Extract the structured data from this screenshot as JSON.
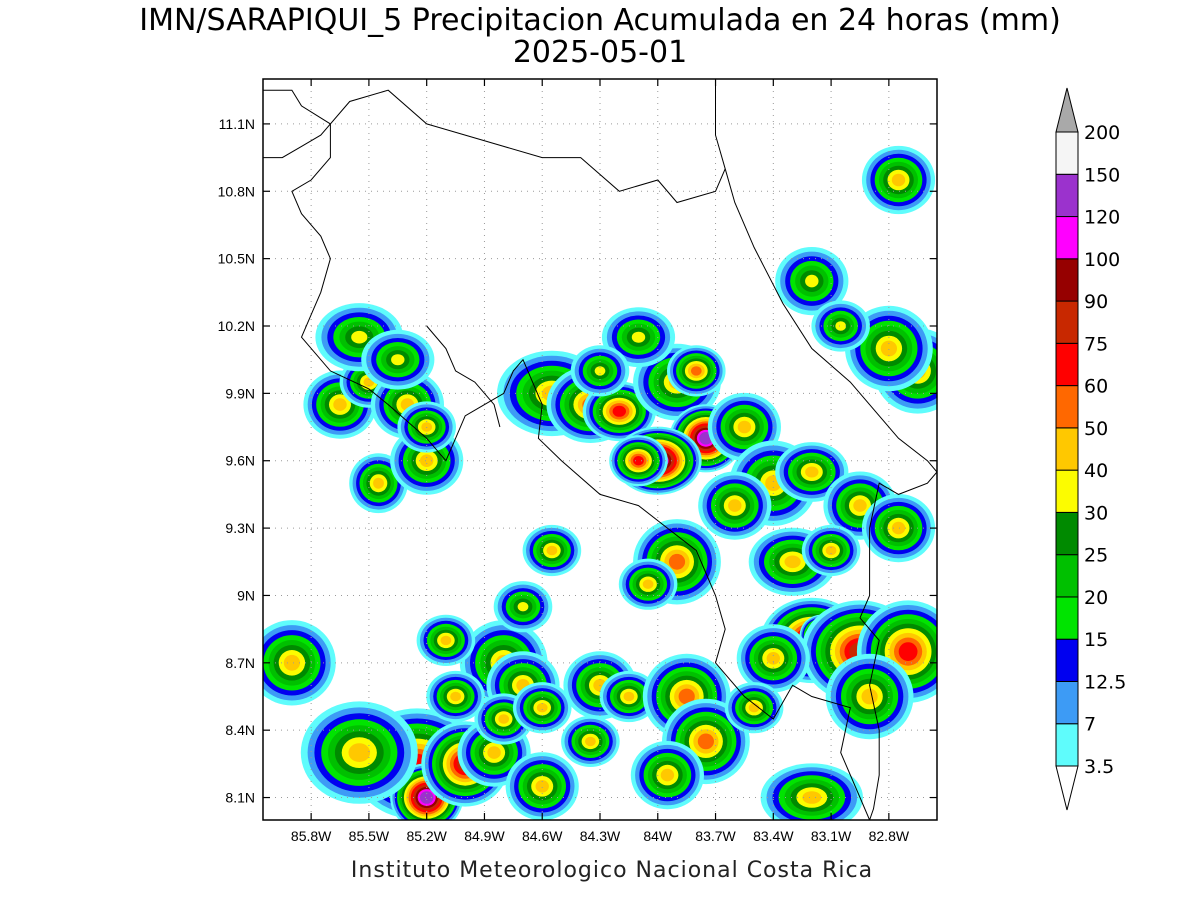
{
  "title_line1": "IMN/SARAPIQUI_5 Precipitacion Acumulada en 24 horas (mm)",
  "title_line2": "2025-05-01",
  "footer": "Instituto Meteorologico Nacional Costa Rica",
  "map": {
    "lon_range": [
      -86.05,
      -82.55
    ],
    "lat_range": [
      8.0,
      11.3
    ],
    "lon_ticks": [
      "85.8W",
      "85.5W",
      "85.2W",
      "84.9W",
      "84.6W",
      "84.3W",
      "84W",
      "83.7W",
      "83.4W",
      "83.1W",
      "82.8W"
    ],
    "lon_tick_values": [
      -85.8,
      -85.5,
      -85.2,
      -84.9,
      -84.6,
      -84.3,
      -84.0,
      -83.7,
      -83.4,
      -83.1,
      -82.8
    ],
    "lat_ticks": [
      "11.1N",
      "10.8N",
      "10.5N",
      "10.2N",
      "9.9N",
      "9.6N",
      "9.3N",
      "9N",
      "8.7N",
      "8.4N",
      "8.1N"
    ],
    "lat_tick_values": [
      11.1,
      10.8,
      10.5,
      10.2,
      9.9,
      9.6,
      9.3,
      9.0,
      8.7,
      8.4,
      8.1
    ],
    "grid": true
  },
  "colorbar": {
    "levels": [
      "3.5",
      "7",
      "12.5",
      "15",
      "20",
      "25",
      "30",
      "40",
      "50",
      "60",
      "75",
      "90",
      "100",
      "120",
      "150",
      "200"
    ],
    "colors": [
      "#5ffcfc",
      "#3d9bf5",
      "#0000f0",
      "#00e400",
      "#00c000",
      "#008a00",
      "#fcfc00",
      "#ffc800",
      "#ff6800",
      "#ff0000",
      "#c82800",
      "#960000",
      "#ff00ff",
      "#9b32cd",
      "#f5f5f5"
    ],
    "over_color": "#a9a9a9",
    "under_color": "#ffffff"
  },
  "precip_cells": [
    [
      -84.55,
      9.9,
      0.15,
      0.1,
      45
    ],
    [
      -84.35,
      9.85,
      0.12,
      0.09,
      55
    ],
    [
      -84.2,
      9.82,
      0.1,
      0.07,
      65
    ],
    [
      -83.9,
      9.95,
      0.12,
      0.09,
      45
    ],
    [
      -83.8,
      10.0,
      0.08,
      0.06,
      55
    ],
    [
      -83.75,
      9.7,
      0.1,
      0.08,
      140
    ],
    [
      -84.0,
      9.6,
      0.12,
      0.08,
      130
    ],
    [
      -84.1,
      9.6,
      0.08,
      0.06,
      70
    ],
    [
      -83.55,
      9.75,
      0.1,
      0.08,
      45
    ],
    [
      -83.4,
      9.5,
      0.12,
      0.1,
      40
    ],
    [
      -83.2,
      9.55,
      0.1,
      0.07,
      42
    ],
    [
      -82.95,
      9.4,
      0.1,
      0.08,
      40
    ],
    [
      -82.75,
      9.3,
      0.1,
      0.08,
      45
    ],
    [
      -83.9,
      9.15,
      0.12,
      0.1,
      55
    ],
    [
      -84.05,
      9.05,
      0.08,
      0.06,
      42
    ],
    [
      -84.8,
      8.7,
      0.12,
      0.1,
      48
    ],
    [
      -84.7,
      8.6,
      0.1,
      0.08,
      42
    ],
    [
      -85.1,
      8.8,
      0.08,
      0.06,
      42
    ],
    [
      -85.25,
      8.25,
      0.18,
      0.13,
      65
    ],
    [
      -85.2,
      8.1,
      0.1,
      0.08,
      130
    ],
    [
      -85.0,
      8.25,
      0.12,
      0.1,
      75
    ],
    [
      -85.5,
      8.35,
      0.1,
      0.08,
      140
    ],
    [
      -85.55,
      8.3,
      0.16,
      0.12,
      45
    ],
    [
      -84.85,
      8.3,
      0.1,
      0.08,
      45
    ],
    [
      -84.8,
      8.45,
      0.08,
      0.06,
      42
    ],
    [
      -84.6,
      8.15,
      0.1,
      0.08,
      42
    ],
    [
      -84.6,
      8.5,
      0.08,
      0.06,
      40
    ],
    [
      -84.3,
      8.6,
      0.1,
      0.08,
      40
    ],
    [
      -84.15,
      8.55,
      0.08,
      0.06,
      42
    ],
    [
      -83.85,
      8.55,
      0.12,
      0.1,
      55
    ],
    [
      -83.75,
      8.35,
      0.12,
      0.1,
      55
    ],
    [
      -83.95,
      8.2,
      0.1,
      0.08,
      45
    ],
    [
      -83.2,
      8.8,
      0.14,
      0.1,
      90
    ],
    [
      -83.15,
      8.82,
      0.06,
      0.05,
      140
    ],
    [
      -82.95,
      8.75,
      0.16,
      0.12,
      75
    ],
    [
      -82.7,
      8.75,
      0.14,
      0.12,
      70
    ],
    [
      -82.9,
      8.55,
      0.12,
      0.1,
      45
    ],
    [
      -83.4,
      8.72,
      0.1,
      0.08,
      45
    ],
    [
      -83.5,
      8.5,
      0.08,
      0.06,
      45
    ],
    [
      -83.2,
      8.1,
      0.14,
      0.08,
      42
    ],
    [
      -85.65,
      9.85,
      0.1,
      0.08,
      45
    ],
    [
      -85.5,
      9.95,
      0.08,
      0.06,
      45
    ],
    [
      -85.3,
      9.85,
      0.1,
      0.08,
      42
    ],
    [
      -85.45,
      9.5,
      0.08,
      0.07,
      45
    ],
    [
      -85.2,
      9.6,
      0.1,
      0.08,
      45
    ],
    [
      -85.2,
      9.75,
      0.08,
      0.06,
      42
    ],
    [
      -85.55,
      10.15,
      0.12,
      0.08,
      38
    ],
    [
      -85.35,
      10.05,
      0.1,
      0.07,
      38
    ],
    [
      -85.9,
      8.7,
      0.12,
      0.1,
      42
    ],
    [
      -82.75,
      10.85,
      0.1,
      0.08,
      45
    ],
    [
      -82.65,
      10.0,
      0.12,
      0.1,
      42
    ],
    [
      -82.8,
      10.1,
      0.12,
      0.1,
      45
    ],
    [
      -83.2,
      10.4,
      0.1,
      0.08,
      38
    ],
    [
      -83.05,
      10.2,
      0.08,
      0.06,
      35
    ],
    [
      -84.1,
      10.15,
      0.1,
      0.07,
      38
    ],
    [
      -84.3,
      10.0,
      0.08,
      0.06,
      38
    ],
    [
      -83.6,
      9.4,
      0.1,
      0.08,
      42
    ],
    [
      -83.3,
      9.15,
      0.12,
      0.08,
      40
    ],
    [
      -83.1,
      9.2,
      0.08,
      0.06,
      40
    ],
    [
      -84.55,
      9.2,
      0.08,
      0.06,
      40
    ],
    [
      -84.7,
      8.95,
      0.08,
      0.06,
      38
    ],
    [
      -85.05,
      8.55,
      0.08,
      0.06,
      40
    ],
    [
      -84.35,
      8.35,
      0.08,
      0.06,
      40
    ]
  ],
  "coast_lines": [
    [
      [
        -86.05,
        11.25
      ],
      [
        -85.9,
        11.25
      ],
      [
        -85.85,
        11.18
      ],
      [
        -85.7,
        11.1
      ],
      [
        -85.7,
        10.95
      ],
      [
        -85.8,
        10.85
      ],
      [
        -85.9,
        10.8
      ],
      [
        -85.85,
        10.7
      ],
      [
        -85.75,
        10.6
      ],
      [
        -85.7,
        10.5
      ],
      [
        -85.75,
        10.35
      ],
      [
        -85.8,
        10.25
      ],
      [
        -85.85,
        10.15
      ],
      [
        -85.7,
        10.0
      ],
      [
        -85.5,
        9.92
      ],
      [
        -85.4,
        9.85
      ],
      [
        -85.2,
        9.7
      ],
      [
        -85.1,
        9.6
      ],
      [
        -85.05,
        9.7
      ],
      [
        -85.0,
        9.8
      ],
      [
        -84.9,
        9.85
      ],
      [
        -84.8,
        9.9
      ],
      [
        -84.75,
        10.0
      ],
      [
        -84.7,
        10.05
      ],
      [
        -84.6,
        9.85
      ],
      [
        -84.62,
        9.7
      ],
      [
        -84.5,
        9.6
      ],
      [
        -84.3,
        9.45
      ],
      [
        -84.1,
        9.4
      ],
      [
        -83.95,
        9.3
      ],
      [
        -83.8,
        9.2
      ],
      [
        -83.7,
        9.0
      ],
      [
        -83.65,
        8.85
      ],
      [
        -83.7,
        8.7
      ],
      [
        -83.55,
        8.55
      ],
      [
        -83.4,
        8.45
      ],
      [
        -83.3,
        8.6
      ],
      [
        -83.2,
        8.55
      ],
      [
        -83.0,
        8.5
      ],
      [
        -83.05,
        8.3
      ],
      [
        -82.95,
        8.1
      ],
      [
        -82.9,
        8.0
      ]
    ],
    [
      [
        -85.2,
        10.2
      ],
      [
        -85.1,
        10.1
      ],
      [
        -85.05,
        10.0
      ],
      [
        -84.95,
        9.95
      ],
      [
        -84.85,
        9.85
      ],
      [
        -84.82,
        9.75
      ]
    ],
    [
      [
        -83.7,
        11.3
      ],
      [
        -83.7,
        11.05
      ],
      [
        -83.65,
        10.9
      ],
      [
        -83.6,
        10.75
      ],
      [
        -83.5,
        10.55
      ],
      [
        -83.35,
        10.3
      ],
      [
        -83.2,
        10.1
      ],
      [
        -83.0,
        9.95
      ],
      [
        -82.85,
        9.8
      ],
      [
        -82.75,
        9.7
      ],
      [
        -82.6,
        9.6
      ],
      [
        -82.55,
        9.55
      ]
    ],
    [
      [
        -86.05,
        10.95
      ],
      [
        -85.95,
        10.95
      ],
      [
        -85.85,
        11.0
      ],
      [
        -85.75,
        11.05
      ],
      [
        -85.6,
        11.2
      ],
      [
        -85.4,
        11.25
      ],
      [
        -85.2,
        11.1
      ],
      [
        -85.0,
        11.05
      ],
      [
        -84.8,
        11.0
      ],
      [
        -84.6,
        10.95
      ],
      [
        -84.4,
        10.95
      ],
      [
        -84.2,
        10.8
      ],
      [
        -84.0,
        10.85
      ],
      [
        -83.9,
        10.75
      ],
      [
        -83.7,
        10.8
      ],
      [
        -83.65,
        10.9
      ]
    ],
    [
      [
        -82.55,
        9.55
      ],
      [
        -82.6,
        9.5
      ],
      [
        -82.75,
        9.45
      ],
      [
        -82.85,
        9.5
      ],
      [
        -82.9,
        9.3
      ],
      [
        -82.9,
        9.0
      ],
      [
        -82.95,
        8.9
      ],
      [
        -82.85,
        8.8
      ],
      [
        -82.9,
        8.6
      ],
      [
        -82.85,
        8.4
      ],
      [
        -82.85,
        8.2
      ],
      [
        -82.88,
        8.05
      ],
      [
        -82.9,
        8.0
      ]
    ]
  ]
}
